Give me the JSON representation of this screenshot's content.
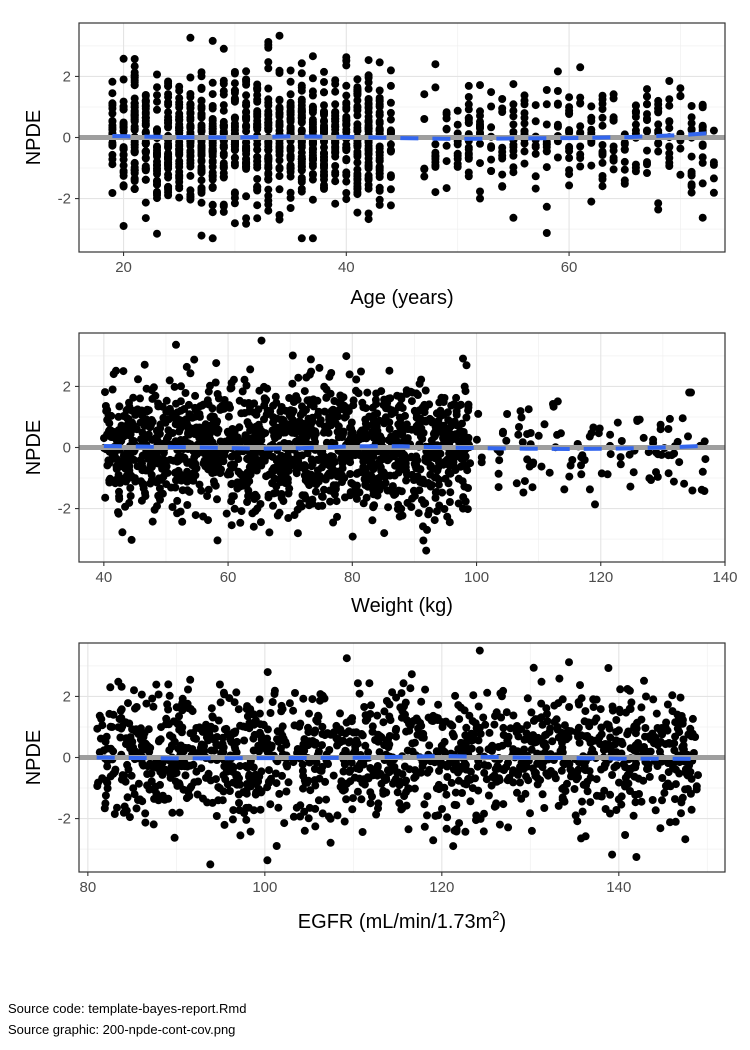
{
  "chart_data": [
    {
      "type": "scatter",
      "xlabel": "Age (years)",
      "ylabel": "NPDE",
      "xlim": [
        16,
        74
      ],
      "ylim": [
        -3.75,
        3.75
      ],
      "x_ticks": [
        20,
        40,
        60
      ],
      "y_ticks": [
        -2,
        0,
        2
      ],
      "grid": true,
      "reference_line": 0,
      "reference_color": "#9e9e9e",
      "marker_color": "#000000",
      "smooth_color": "#3366ee",
      "smooth": [
        [
          19,
          0.05
        ],
        [
          25,
          0.01
        ],
        [
          30,
          0.0
        ],
        [
          35,
          0.04
        ],
        [
          40,
          0.02
        ],
        [
          45,
          -0.02
        ],
        [
          50,
          -0.05
        ],
        [
          55,
          -0.03
        ],
        [
          60,
          -0.02
        ],
        [
          65,
          0.01
        ],
        [
          70,
          0.08
        ],
        [
          73,
          0.15
        ]
      ],
      "points_summary": {
        "ranges": [
          {
            "x": [
              19,
              44
            ],
            "y_sd": 1.05,
            "y_min": -3.3,
            "y_max": 3.5,
            "n": 1100
          },
          {
            "x": [
              47,
              73
            ],
            "y_sd": 1.0,
            "y_min": -3.5,
            "y_max": 2.4,
            "n": 320
          }
        ],
        "discrete_step": 1
      }
    },
    {
      "type": "scatter",
      "xlabel": "Weight (kg)",
      "ylabel": "NPDE",
      "xlim": [
        36,
        140
      ],
      "ylim": [
        -3.75,
        3.75
      ],
      "x_ticks": [
        40,
        60,
        80,
        100,
        120,
        140
      ],
      "y_ticks": [
        -2,
        0,
        2
      ],
      "grid": true,
      "reference_line": 0,
      "reference_color": "#9e9e9e",
      "marker_color": "#000000",
      "smooth_color": "#3366ee",
      "smooth": [
        [
          40,
          0.05
        ],
        [
          50,
          0.02
        ],
        [
          58,
          -0.01
        ],
        [
          65,
          -0.04
        ],
        [
          72,
          -0.02
        ],
        [
          80,
          0.04
        ],
        [
          88,
          0.04
        ],
        [
          95,
          0.0
        ],
        [
          100,
          -0.02
        ],
        [
          108,
          -0.04
        ],
        [
          115,
          -0.05
        ],
        [
          122,
          -0.04
        ],
        [
          130,
          0.0
        ],
        [
          136,
          0.05
        ]
      ],
      "points_summary": {
        "ranges": [
          {
            "x": [
              40,
              99
            ],
            "y_sd": 1.05,
            "y_min": -3.5,
            "y_max": 3.5,
            "n": 1500
          },
          {
            "x": [
              100,
              137
            ],
            "y_sd": 0.9,
            "y_min": -2.4,
            "y_max": 1.8,
            "n": 110
          }
        ],
        "discrete_step": 0
      }
    },
    {
      "type": "scatter",
      "xlabel": "EGFR (mL/min/1.73m",
      "xlabel_superscript": "2",
      "xlabel_suffix": ")",
      "ylabel": "NPDE",
      "xlim": [
        79,
        152
      ],
      "ylim": [
        -3.75,
        3.75
      ],
      "x_ticks": [
        80,
        100,
        120,
        140
      ],
      "y_ticks": [
        -2,
        0,
        2
      ],
      "grid": true,
      "reference_line": 0,
      "reference_color": "#9e9e9e",
      "marker_color": "#000000",
      "smooth_color": "#3366ee",
      "smooth": [
        [
          81,
          0.0
        ],
        [
          90,
          -0.03
        ],
        [
          100,
          -0.02
        ],
        [
          110,
          -0.01
        ],
        [
          115,
          0.02
        ],
        [
          120,
          0.05
        ],
        [
          125,
          0.02
        ],
        [
          130,
          -0.01
        ],
        [
          135,
          -0.02
        ],
        [
          140,
          -0.04
        ],
        [
          145,
          -0.04
        ],
        [
          149,
          -0.05
        ]
      ],
      "points_summary": {
        "ranges": [
          {
            "x": [
              81,
              149
            ],
            "y_sd": 1.05,
            "y_min": -3.5,
            "y_max": 3.5,
            "n": 1400
          }
        ],
        "discrete_step": 0
      }
    }
  ],
  "footnotes": {
    "source_code": "Source code: template-bayes-report.Rmd",
    "source_graphic": "Source graphic: 200-npde-cont-cov.png"
  }
}
